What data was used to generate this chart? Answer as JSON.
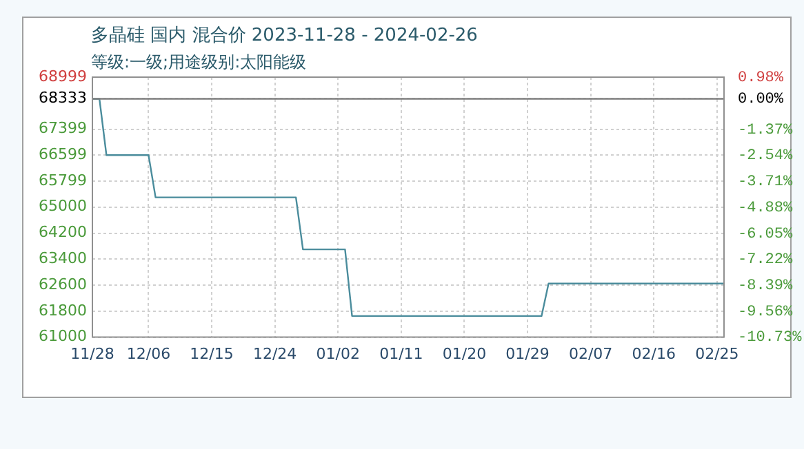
{
  "chart_data": {
    "type": "line",
    "title": "多晶硅 国内 混合价 2023-11-28 - 2024-02-26",
    "subtitle": "等级:一级;用途级别:太阳能级",
    "x": [
      "2023-11-28",
      "2023-11-29",
      "2023-11-30",
      "2023-12-06",
      "2023-12-07",
      "2023-12-27",
      "2023-12-28",
      "2024-01-03",
      "2024-01-04",
      "2024-01-31",
      "2024-02-01",
      "2024-02-26"
    ],
    "series": [
      {
        "color": "#4a8c9c",
        "values": [
          68333,
          68333,
          66600,
          66600,
          65300,
          65300,
          63700,
          63700,
          61650,
          61650,
          62650,
          62650
        ]
      }
    ],
    "xlim": [
      "2023-11-28",
      "2024-02-26"
    ],
    "xticks": [
      {
        "value": "2023-11-28",
        "label": "11/28"
      },
      {
        "value": "2023-12-06",
        "label": "12/06"
      },
      {
        "value": "2023-12-15",
        "label": "12/15"
      },
      {
        "value": "2023-12-24",
        "label": "12/24"
      },
      {
        "value": "2024-01-02",
        "label": "01/02"
      },
      {
        "value": "2024-01-11",
        "label": "01/11"
      },
      {
        "value": "2024-01-20",
        "label": "01/20"
      },
      {
        "value": "2024-01-29",
        "label": "01/29"
      },
      {
        "value": "2024-02-07",
        "label": "02/07"
      },
      {
        "value": "2024-02-16",
        "label": "02/16"
      },
      {
        "value": "2024-02-25",
        "label": "02/25"
      }
    ],
    "ylim": [
      61000,
      68999
    ],
    "yticks": [
      61000,
      61800,
      62600,
      63400,
      64200,
      65000,
      65799,
      66599,
      67399,
      68333,
      68999
    ],
    "y2lim": [
      -10.73,
      0.98
    ],
    "y2ticks": [
      {
        "value": -10.73,
        "label": "-10.73%"
      },
      {
        "value": -9.56,
        "label": "-9.56%"
      },
      {
        "value": -8.39,
        "label": "-8.39%"
      },
      {
        "value": -7.22,
        "label": "-7.22%"
      },
      {
        "value": -6.05,
        "label": "-6.05%"
      },
      {
        "value": -4.88,
        "label": "-4.88%"
      },
      {
        "value": -3.71,
        "label": "-3.71%"
      },
      {
        "value": -2.54,
        "label": "-2.54%"
      },
      {
        "value": -1.37,
        "label": "-1.37%"
      },
      {
        "value": 0,
        "label": "0.00%"
      },
      {
        "value": 0.98,
        "label": "0.98%"
      }
    ],
    "ref_lines": [
      {
        "axis": "y",
        "value": 68333,
        "color": "#808080"
      }
    ],
    "grid": true,
    "legend": false,
    "marker": "none",
    "line_style": "solid"
  }
}
